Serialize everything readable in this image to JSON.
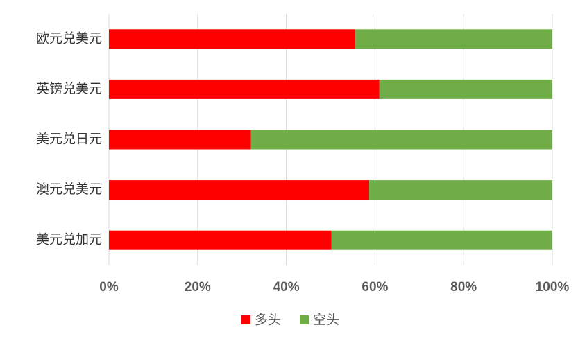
{
  "chart_data": {
    "type": "stacked_bar_horizontal",
    "categories": [
      "欧元兑美元",
      "英镑兑美元",
      "美元兑日元",
      "澳元兑美元",
      "美元兑加元"
    ],
    "series": [
      {
        "name": "多头",
        "color": "#ff0000",
        "values": [
          55.6,
          61,
          32,
          58.7,
          50.2
        ]
      },
      {
        "name": "空头",
        "color": "#70ad47",
        "values": [
          44.4,
          39,
          68,
          41.3,
          49.8
        ]
      }
    ],
    "xlim": [
      0,
      100
    ],
    "xticks": [
      {
        "value": 0,
        "label": "0%"
      },
      {
        "value": 20,
        "label": "20%"
      },
      {
        "value": 40,
        "label": "40%"
      },
      {
        "value": 60,
        "label": "60%"
      },
      {
        "value": 80,
        "label": "80%"
      },
      {
        "value": 100,
        "label": "100%"
      }
    ],
    "grid": true,
    "legend": "bottom"
  }
}
